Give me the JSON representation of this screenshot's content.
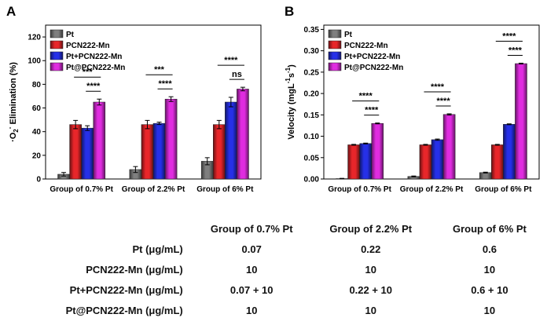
{
  "chart_data": [
    {
      "type": "bar",
      "panel": "A",
      "ylabel": "·O2- Elimination (%)",
      "ylabel_main": "·O",
      "ylabel_sub": "2",
      "ylabel_sup": "-",
      "ylabel_rest": " Elimination (%)",
      "ylim": [
        0,
        130
      ],
      "yticks": [
        0,
        20,
        40,
        60,
        80,
        100,
        120
      ],
      "categories": [
        "Group of 0.7% Pt",
        "Group of 2.2% Pt",
        "Group of 6% Pt"
      ],
      "series": [
        {
          "name": "Pt",
          "color": "#7f7f7f",
          "values": [
            4,
            8,
            15
          ],
          "errors": [
            1.5,
            2.5,
            3
          ]
        },
        {
          "name": "PCN222-Mn",
          "color": "#e8262a",
          "values": [
            46,
            46,
            46
          ],
          "errors": [
            3.5,
            3.5,
            3.5
          ]
        },
        {
          "name": "Pt+PCN222-Mn",
          "color": "#2630e8",
          "values": [
            43,
            47,
            65
          ],
          "errors": [
            2,
            1,
            4
          ]
        },
        {
          "name": "Pt@PCN222-Mn",
          "color": "#e02ce0",
          "values": [
            65,
            67.5,
            76
          ],
          "errors": [
            2.5,
            2,
            1.5
          ]
        }
      ],
      "significance": [
        {
          "group": 0,
          "from": 1,
          "to": 3,
          "label": "***"
        },
        {
          "group": 0,
          "from": 2,
          "to": 3,
          "label": "****"
        },
        {
          "group": 1,
          "from": 1,
          "to": 3,
          "label": "***"
        },
        {
          "group": 1,
          "from": 2,
          "to": 3,
          "label": "****"
        },
        {
          "group": 2,
          "from": 1,
          "to": 3,
          "label": "****"
        },
        {
          "group": 2,
          "from": 2,
          "to": 3,
          "label": "ns"
        }
      ]
    },
    {
      "type": "bar",
      "panel": "B",
      "ylabel": "Velocity (mgL-1s-1)",
      "ylabel_main": "Velocity (mgL",
      "ylabel_sup1": "-1",
      "ylabel_mid": "s",
      "ylabel_sup2": "-1",
      "ylabel_end": ")",
      "ylim": [
        0,
        0.36
      ],
      "yticks": [
        0.0,
        0.05,
        0.1,
        0.15,
        0.2,
        0.25,
        0.3,
        0.35
      ],
      "ytick_labels": [
        "0.00",
        "0.05",
        "0.10",
        "0.15",
        "0.20",
        "0.25",
        "0.30",
        "0.35"
      ],
      "categories": [
        "Group of 0.7% Pt",
        "Group of 2.2% Pt",
        "Group of 6% Pt"
      ],
      "series": [
        {
          "name": "Pt",
          "color": "#7f7f7f",
          "values": [
            0.001,
            0.006,
            0.015
          ],
          "errors": [
            0.0005,
            0.001,
            0.001
          ]
        },
        {
          "name": "PCN222-Mn",
          "color": "#e8262a",
          "values": [
            0.08,
            0.08,
            0.08
          ],
          "errors": [
            0.001,
            0.001,
            0.001
          ]
        },
        {
          "name": "Pt+PCN222-Mn",
          "color": "#2630e8",
          "values": [
            0.083,
            0.092,
            0.128
          ],
          "errors": [
            0.001,
            0.0015,
            0.001
          ]
        },
        {
          "name": "Pt@PCN222-Mn",
          "color": "#e02ce0",
          "values": [
            0.13,
            0.151,
            0.27
          ],
          "errors": [
            0.001,
            0.0015,
            0.001
          ]
        }
      ],
      "significance": [
        {
          "group": 0,
          "from": 1,
          "to": 3,
          "label": "****"
        },
        {
          "group": 0,
          "from": 2,
          "to": 3,
          "label": "****"
        },
        {
          "group": 1,
          "from": 1,
          "to": 3,
          "label": "****"
        },
        {
          "group": 1,
          "from": 2,
          "to": 3,
          "label": "****"
        },
        {
          "group": 2,
          "from": 1,
          "to": 3,
          "label": "****"
        },
        {
          "group": 2,
          "from": 2,
          "to": 3,
          "label": "****"
        }
      ]
    },
    {
      "type": "table",
      "columns": [
        "Group of 0.7% Pt",
        "Group of 2.2% Pt",
        "Group of 6% Pt"
      ],
      "rows": [
        {
          "label": "Pt (μg/mL)",
          "values": [
            "0.07",
            "0.22",
            "0.6"
          ]
        },
        {
          "label": "PCN222-Mn (μg/mL)",
          "values": [
            "10",
            "10",
            "10"
          ]
        },
        {
          "label": "Pt+PCN222-Mn (μg/mL)",
          "values": [
            "0.07 + 10",
            "0.22 + 10",
            "0.6 + 10"
          ]
        },
        {
          "label": "Pt@PCN222-Mn (μg/mL)",
          "values": [
            "10",
            "10",
            "10"
          ]
        }
      ]
    }
  ]
}
